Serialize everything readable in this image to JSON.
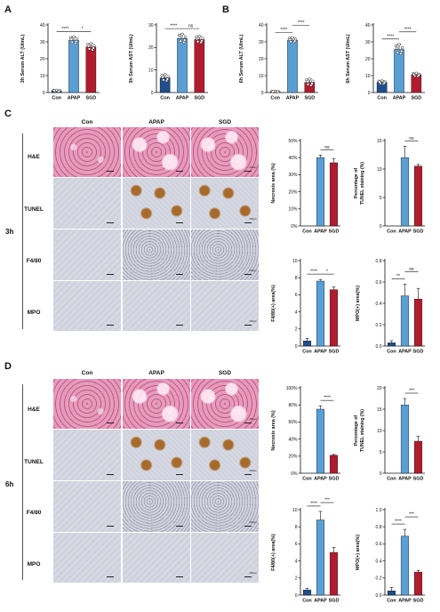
{
  "panels": {
    "A": "A",
    "B": "B",
    "C": "C",
    "D": "D"
  },
  "columns": [
    "Con",
    "APAP",
    "SGD"
  ],
  "rows": [
    "H&E",
    "TUNEL",
    "F4/80",
    "MPO"
  ],
  "groups": {
    "C": "3h",
    "D": "6h"
  },
  "scale_label": "200μm",
  "colors": {
    "con": "#1f4e8c",
    "apap": "#5a9fd4",
    "sgd": "#b01c2e",
    "he_bg": "#e69bbb",
    "he_dark": "#c0588c",
    "ihc_bg": "#cfd2dd",
    "tunel": "#a86a2a"
  },
  "chart_data": [
    {
      "id": "A1",
      "type": "bar",
      "categories": [
        "Con",
        "APAP",
        "SGD"
      ],
      "values": [
        1,
        31,
        27
      ],
      "errors": [
        0.4,
        2,
        2
      ],
      "ylabel": "3h Serum ALT (U/mL)",
      "ylim": [
        0,
        40
      ],
      "yticks": [
        0,
        10,
        20,
        30,
        40
      ],
      "points": true,
      "sig": [
        {
          "from": 0,
          "to": 1,
          "label": "****",
          "level": 0
        },
        {
          "from": 1,
          "to": 2,
          "label": "*",
          "level": 0
        }
      ]
    },
    {
      "id": "A2",
      "type": "bar",
      "categories": [
        "Con",
        "APAP",
        "SGD"
      ],
      "values": [
        6.5,
        24,
        23.5
      ],
      "errors": [
        1.5,
        2,
        1.5
      ],
      "ylabel": "3h Serum AST (U/mL)",
      "ylim": [
        0,
        30
      ],
      "yticks": [
        0,
        10,
        20,
        30
      ],
      "points": true,
      "sig": [
        {
          "from": 0,
          "to": 1,
          "label": "****",
          "level": 0
        },
        {
          "from": 1,
          "to": 2,
          "label": "ns",
          "level": 0
        }
      ]
    },
    {
      "id": "B1",
      "type": "bar",
      "categories": [
        "Con",
        "APAP",
        "SGD"
      ],
      "values": [
        0.5,
        31,
        6
      ],
      "errors": [
        0.3,
        1.5,
        2
      ],
      "ylabel": "6h Serum ALT (U/mL)",
      "ylim": [
        0,
        40
      ],
      "yticks": [
        0,
        10,
        20,
        30,
        40
      ],
      "points": true,
      "sig": [
        {
          "from": 0,
          "to": 1,
          "label": "****",
          "level": 0
        },
        {
          "from": 1,
          "to": 2,
          "label": "****",
          "level": 1
        }
      ]
    },
    {
      "id": "B2",
      "type": "bar",
      "categories": [
        "Con",
        "APAP",
        "SGD"
      ],
      "values": [
        6,
        25.5,
        10.5
      ],
      "errors": [
        1,
        3,
        1
      ],
      "ylabel": "6h Serum AST (U/mL)",
      "ylim": [
        0,
        40
      ],
      "yticks": [
        0,
        10,
        20,
        30,
        40
      ],
      "points": true,
      "sig": [
        {
          "from": 0,
          "to": 1,
          "label": "****",
          "level": 0
        },
        {
          "from": 1,
          "to": 2,
          "label": "****",
          "level": 1
        }
      ]
    },
    {
      "id": "C1",
      "type": "bar",
      "categories": [
        "Con",
        "APAP",
        "SGD"
      ],
      "values": [
        0,
        40,
        37
      ],
      "errors": [
        0,
        1.5,
        2.5
      ],
      "ylabel": "Necrosis area (%)",
      "ylim": [
        0,
        50
      ],
      "yticks": [
        0,
        10,
        20,
        30,
        40,
        50
      ],
      "yticklabels": [
        "0%",
        "10%",
        "20%",
        "30%",
        "40%",
        "50%"
      ],
      "points": false,
      "sig": [
        {
          "from": 1,
          "to": 2,
          "label": "ns",
          "level": 0
        }
      ]
    },
    {
      "id": "C2",
      "type": "bar",
      "categories": [
        "Con",
        "APAP",
        "SGD"
      ],
      "values": [
        0,
        12,
        10.5
      ],
      "errors": [
        0,
        2,
        0.3
      ],
      "ylabel": "Percentage of TUNEL staining (%)",
      "ylim": [
        0,
        15
      ],
      "yticks": [
        0,
        5,
        10,
        15
      ],
      "points": false,
      "sig": [
        {
          "from": 1,
          "to": 2,
          "label": "ns",
          "level": 0
        }
      ]
    },
    {
      "id": "C3",
      "type": "bar",
      "categories": [
        "Con",
        "APAP",
        "SGD"
      ],
      "values": [
        0.6,
        7.6,
        6.6
      ],
      "errors": [
        0.3,
        0.2,
        0.3
      ],
      "ylabel": "F4/80(+) area(%)",
      "ylim": [
        0,
        10
      ],
      "yticks": [
        0,
        2,
        4,
        6,
        8,
        10
      ],
      "points": false,
      "sig": [
        {
          "from": 0,
          "to": 1,
          "label": "****",
          "level": 0
        },
        {
          "from": 1,
          "to": 2,
          "label": "*",
          "level": 0
        }
      ]
    },
    {
      "id": "C4",
      "type": "bar",
      "categories": [
        "Con",
        "APAP",
        "SGD"
      ],
      "values": [
        0.03,
        0.47,
        0.44
      ],
      "errors": [
        0.02,
        0.11,
        0.1
      ],
      "ylabel": "MPO(+) area(%)",
      "ylim": [
        0,
        0.8
      ],
      "yticks": [
        0,
        0.2,
        0.4,
        0.6,
        0.8
      ],
      "yticklabels": [
        "0.0",
        "0.2",
        "0.4",
        "0.6",
        "0.8"
      ],
      "points": false,
      "sig": [
        {
          "from": 0,
          "to": 1,
          "label": "**",
          "level": 0
        },
        {
          "from": 1,
          "to": 2,
          "label": "ns",
          "level": 1
        }
      ]
    },
    {
      "id": "D1",
      "type": "bar",
      "categories": [
        "Con",
        "APAP",
        "SGD"
      ],
      "values": [
        0,
        75,
        21
      ],
      "errors": [
        0,
        4,
        1
      ],
      "ylabel": "Necrosis area (%)",
      "ylim": [
        0,
        100
      ],
      "yticks": [
        0,
        20,
        40,
        60,
        80,
        100
      ],
      "yticklabels": [
        "0%",
        "20%",
        "40%",
        "60%",
        "80%",
        "100%"
      ],
      "points": false,
      "sig": [
        {
          "from": 1,
          "to": 2,
          "label": "****",
          "level": 0
        }
      ]
    },
    {
      "id": "D2",
      "type": "bar",
      "categories": [
        "Con",
        "APAP",
        "SGD"
      ],
      "values": [
        0,
        16,
        7.5
      ],
      "errors": [
        0,
        1.5,
        1.2
      ],
      "ylabel": "Percentage of TUNEL staining (%)",
      "ylim": [
        0,
        20
      ],
      "yticks": [
        0,
        5,
        10,
        15,
        20
      ],
      "points": false,
      "sig": [
        {
          "from": 1,
          "to": 2,
          "label": "***",
          "level": 0
        }
      ]
    },
    {
      "id": "D3",
      "type": "bar",
      "categories": [
        "Con",
        "APAP",
        "SGD"
      ],
      "values": [
        0.6,
        8.8,
        5.0
      ],
      "errors": [
        0.2,
        1.0,
        0.6
      ],
      "ylabel": "F4/80(+) area(%)",
      "ylim": [
        0,
        10
      ],
      "yticks": [
        0,
        2,
        4,
        6,
        8,
        10
      ],
      "points": false,
      "sig": [
        {
          "from": 0,
          "to": 1,
          "label": "****",
          "level": 0
        },
        {
          "from": 1,
          "to": 2,
          "label": "***",
          "level": 1
        }
      ]
    },
    {
      "id": "D4",
      "type": "bar",
      "categories": [
        "Con",
        "APAP",
        "SGD"
      ],
      "values": [
        0.05,
        0.69,
        0.27
      ],
      "errors": [
        0.04,
        0.08,
        0.02
      ],
      "ylabel": "MPO(+) area(%)",
      "ylim": [
        0,
        1.0
      ],
      "yticks": [
        0,
        0.2,
        0.4,
        0.6,
        0.8,
        1.0
      ],
      "yticklabels": [
        "0.0",
        "0.2",
        "0.4",
        "0.6",
        "0.8",
        "1.0"
      ],
      "points": false,
      "sig": [
        {
          "from": 0,
          "to": 1,
          "label": "****",
          "level": 0
        },
        {
          "from": 1,
          "to": 2,
          "label": "***",
          "level": 1
        }
      ]
    }
  ]
}
